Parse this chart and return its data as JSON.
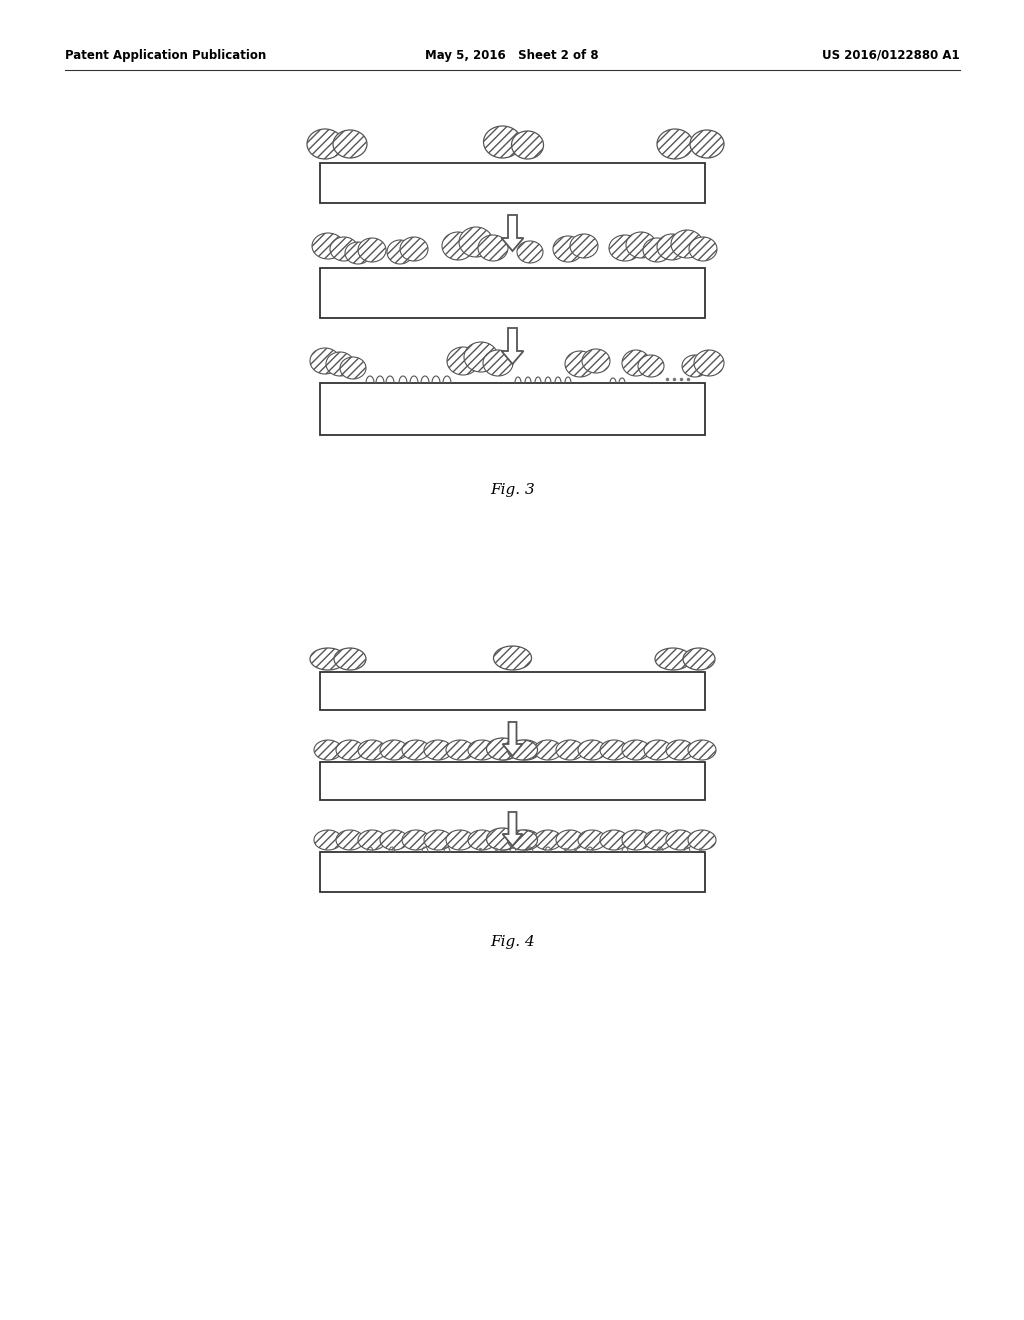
{
  "background_color": "#ffffff",
  "header_left": "Patent Application Publication",
  "header_mid": "May 5, 2016   Sheet 2 of 8",
  "header_right": "US 2016/0122880 A1",
  "fig3_label": "Fig. 3",
  "fig4_label": "Fig. 4"
}
